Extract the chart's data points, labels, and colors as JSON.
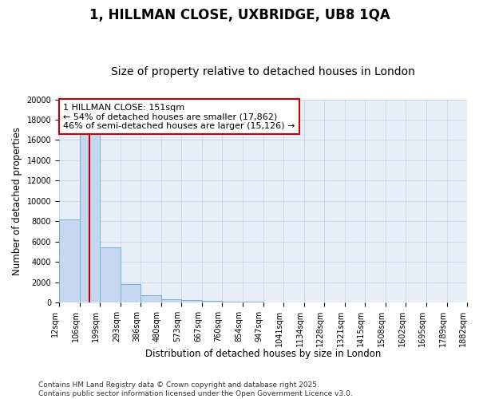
{
  "title1": "1, HILLMAN CLOSE, UXBRIDGE, UB8 1QA",
  "title2": "Size of property relative to detached houses in London",
  "xlabel": "Distribution of detached houses by size in London",
  "ylabel": "Number of detached properties",
  "bin_labels": [
    "12sqm",
    "106sqm",
    "199sqm",
    "293sqm",
    "386sqm",
    "480sqm",
    "573sqm",
    "667sqm",
    "760sqm",
    "854sqm",
    "947sqm",
    "1041sqm",
    "1134sqm",
    "1228sqm",
    "1321sqm",
    "1415sqm",
    "1508sqm",
    "1602sqm",
    "1695sqm",
    "1789sqm",
    "1882sqm"
  ],
  "bin_edges": [
    12,
    106,
    199,
    293,
    386,
    480,
    573,
    667,
    760,
    854,
    947,
    1041,
    1134,
    1228,
    1321,
    1415,
    1508,
    1602,
    1695,
    1789,
    1882
  ],
  "bar_heights": [
    8200,
    16600,
    5400,
    1800,
    700,
    300,
    200,
    150,
    100,
    50,
    20,
    10,
    8,
    5,
    4,
    3,
    2,
    2,
    1,
    1
  ],
  "bar_color": "#c5d8f0",
  "bar_edge_color": "#7aaed6",
  "property_value": 151,
  "red_line_color": "#cc0000",
  "annotation_line1": "1 HILLMAN CLOSE: 151sqm",
  "annotation_line2": "← 54% of detached houses are smaller (17,862)",
  "annotation_line3": "46% of semi-detached houses are larger (15,126) →",
  "annotation_box_color": "#cc0000",
  "ylim": [
    0,
    20000
  ],
  "yticks": [
    0,
    2000,
    4000,
    6000,
    8000,
    10000,
    12000,
    14000,
    16000,
    18000,
    20000
  ],
  "grid_color": "#c8d4e8",
  "bg_color": "#e8eef8",
  "footer_text": "Contains HM Land Registry data © Crown copyright and database right 2025.\nContains public sector information licensed under the Open Government Licence v3.0.",
  "title1_fontsize": 12,
  "title2_fontsize": 10,
  "axis_fontsize": 8.5,
  "tick_fontsize": 7,
  "footer_fontsize": 6.5,
  "annotation_fontsize": 8
}
